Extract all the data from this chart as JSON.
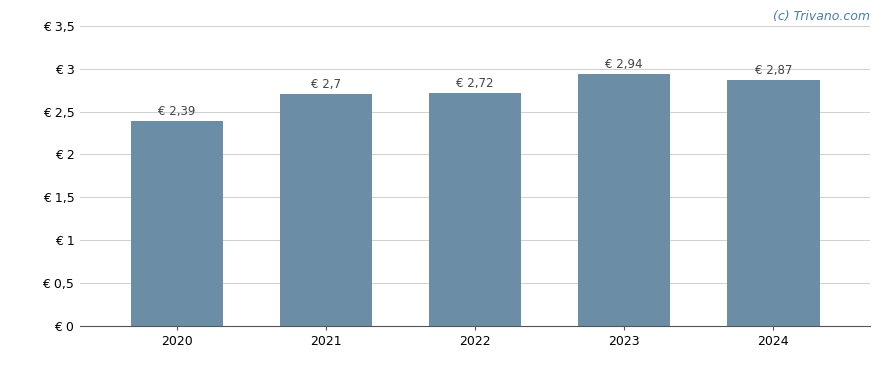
{
  "categories": [
    "2020",
    "2021",
    "2022",
    "2023",
    "2024"
  ],
  "values": [
    2.39,
    2.7,
    2.72,
    2.94,
    2.87
  ],
  "bar_color": "#6b8ea6",
  "ylim": [
    0,
    3.5
  ],
  "yticks": [
    0,
    0.5,
    1.0,
    1.5,
    2.0,
    2.5,
    3.0,
    3.5
  ],
  "ytick_labels": [
    "€ 0",
    "€ 0,5",
    "€ 1",
    "€ 1,5",
    "€ 2",
    "€ 2,5",
    "€ 3",
    "€ 3,5"
  ],
  "bar_labels": [
    "€ 2,39",
    "€ 2,7",
    "€ 2,72",
    "€ 2,94",
    "€ 2,87"
  ],
  "background_color": "#ffffff",
  "grid_color": "#d0d0d0",
  "watermark": "(c) Trivano.com",
  "watermark_color": "#4a7fa8",
  "bar_width": 0.62,
  "label_fontsize": 8.5,
  "tick_fontsize": 9,
  "watermark_fontsize": 9
}
